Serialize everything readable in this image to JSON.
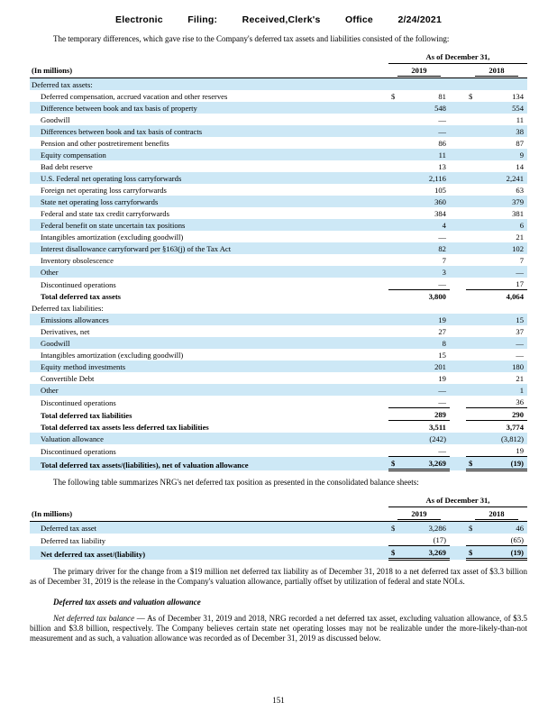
{
  "stamp": {
    "segments": [
      "Electronic",
      "Filing:",
      "Received,Clerk's",
      "Office",
      "2/24/2021"
    ]
  },
  "colors": {
    "row_shade": "#cde8f6"
  },
  "paragraphs": {
    "intro": "The temporary differences, which gave rise to the Company's deferred tax assets and liabilities consisted of the following:",
    "between": "The following table summarizes NRG's net deferred tax position as presented in the consolidated balance sheets:",
    "driver": "The primary driver for the change from a $19 million net deferred tax liability as of December 31, 2018 to a net deferred tax asset of $3.3 billion as of December 31, 2019 is the release in the Company's valuation allowance, partially offset by utilization of federal and state NOLs.",
    "subheading": "Deferred tax assets and valuation allowance",
    "net_balance_lead": "Net deferred tax balance",
    "net_balance_rest": " — As of December 31, 2019 and 2018, NRG recorded a net deferred tax asset, excluding valuation allowance, of $3.5 billion and $3.8 billion, respectively. The Company believes certain state net operating losses may not be realizable under the more-likely-than-not measurement and as such, a valuation allowance was recorded as of December 31, 2019 as discussed below."
  },
  "tables": [
    {
      "name": "deferred-tax-assets-liabilities-table",
      "span_header": "As of December 31,",
      "label_header": "(In millions)",
      "years": [
        "2019",
        "2018"
      ],
      "rows": [
        {
          "label": "Deferred tax assets:",
          "type": "section",
          "shaded": true
        },
        {
          "label": "Deferred compensation, accrued vacation and other reserves",
          "v1": "81",
          "v2": "134",
          "dollar": true,
          "shaded": false
        },
        {
          "label": "Difference between book and tax basis of property",
          "v1": "548",
          "v2": "554",
          "shaded": true
        },
        {
          "label": "Goodwill",
          "v1": "—",
          "v2": "11",
          "shaded": false
        },
        {
          "label": "Differences between book and tax basis of contracts",
          "v1": "—",
          "v2": "38",
          "shaded": true
        },
        {
          "label": "Pension and other postretirement benefits",
          "v1": "86",
          "v2": "87",
          "shaded": false
        },
        {
          "label": "Equity compensation",
          "v1": "11",
          "v2": "9",
          "shaded": true
        },
        {
          "label": "Bad debt reserve",
          "v1": "13",
          "v2": "14",
          "shaded": false
        },
        {
          "label": "U.S. Federal net operating loss carryforwards",
          "v1": "2,116",
          "v2": "2,241",
          "shaded": true
        },
        {
          "label": "Foreign net operating loss carryforwards",
          "v1": "105",
          "v2": "63",
          "shaded": false
        },
        {
          "label": "State net operating loss carryforwards",
          "v1": "360",
          "v2": "379",
          "shaded": true
        },
        {
          "label": "Federal and state tax credit carryforwards",
          "v1": "384",
          "v2": "381",
          "shaded": false
        },
        {
          "label": "Federal benefit on state uncertain tax positions",
          "v1": "4",
          "v2": "6",
          "shaded": true
        },
        {
          "label": "Intangibles amortization (excluding goodwill)",
          "v1": "—",
          "v2": "21",
          "shaded": false
        },
        {
          "label": "Interest disallowance carryforward per §163(j) of the Tax Act",
          "v1": "82",
          "v2": "102",
          "shaded": true
        },
        {
          "label": "Inventory obsolescence",
          "v1": "7",
          "v2": "7",
          "shaded": false
        },
        {
          "label": "Other",
          "v1": "3",
          "v2": "—",
          "shaded": true
        },
        {
          "label": "Discontinued operations",
          "v1": "—",
          "v2": "17",
          "shaded": false
        },
        {
          "label": "Total deferred tax assets",
          "v1": "3,800",
          "v2": "4,064",
          "type": "total",
          "shaded": false
        },
        {
          "label": "Deferred tax liabilities:",
          "type": "section",
          "shaded": false
        },
        {
          "label": "Emissions allowances",
          "v1": "19",
          "v2": "15",
          "shaded": true
        },
        {
          "label": "Derivatives, net",
          "v1": "27",
          "v2": "37",
          "shaded": false
        },
        {
          "label": "Goodwill",
          "v1": "8",
          "v2": "—",
          "shaded": true
        },
        {
          "label": "Intangibles amortization (excluding goodwill)",
          "v1": "15",
          "v2": "—",
          "shaded": false
        },
        {
          "label": "Equity method investments",
          "v1": "201",
          "v2": "180",
          "shaded": true
        },
        {
          "label": "Convertible Debt",
          "v1": "19",
          "v2": "21",
          "shaded": false
        },
        {
          "label": "Other",
          "v1": "—",
          "v2": "1",
          "shaded": true
        },
        {
          "label": "Discontinued operations",
          "v1": "—",
          "v2": "36",
          "shaded": false
        },
        {
          "label": "Total deferred tax liabilities",
          "v1": "289",
          "v2": "290",
          "type": "total",
          "shaded": false
        },
        {
          "label": "Total deferred tax assets less deferred tax liabilities",
          "v1": "3,511",
          "v2": "3,774",
          "type": "total",
          "shaded": false
        },
        {
          "label": "Valuation allowance",
          "v1": "(242)",
          "v2": "(3,812)",
          "shaded": true
        },
        {
          "label": "Discontinued operations",
          "v1": "—",
          "v2": "19",
          "shaded": false
        },
        {
          "label": "Total deferred tax assets/(liabilities), net of valuation allowance",
          "v1": "3,269",
          "v2": "(19)",
          "dollar": true,
          "type": "grand",
          "shaded": true
        }
      ]
    },
    {
      "name": "net-deferred-tax-position-table",
      "span_header": "As of December 31,",
      "label_header": "(In millions)",
      "years": [
        "2019",
        "2018"
      ],
      "rows": [
        {
          "label": "Deferred tax asset",
          "v1": "3,286",
          "v2": "46",
          "dollar": true,
          "shaded": true
        },
        {
          "label": "Deferred tax liability",
          "v1": "(17)",
          "v2": "(65)",
          "shaded": false
        },
        {
          "label": "Net deferred tax asset/(liability)",
          "v1": "3,269",
          "v2": "(19)",
          "dollar": true,
          "type": "grand",
          "shaded": true
        }
      ]
    }
  ],
  "page_number": "151"
}
